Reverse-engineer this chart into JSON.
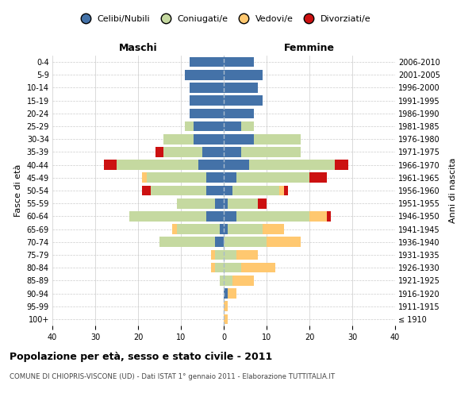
{
  "age_groups": [
    "100+",
    "95-99",
    "90-94",
    "85-89",
    "80-84",
    "75-79",
    "70-74",
    "65-69",
    "60-64",
    "55-59",
    "50-54",
    "45-49",
    "40-44",
    "35-39",
    "30-34",
    "25-29",
    "20-24",
    "15-19",
    "10-14",
    "5-9",
    "0-4"
  ],
  "birth_years": [
    "≤ 1910",
    "1911-1915",
    "1916-1920",
    "1921-1925",
    "1926-1930",
    "1931-1935",
    "1936-1940",
    "1941-1945",
    "1946-1950",
    "1951-1955",
    "1956-1960",
    "1961-1965",
    "1966-1970",
    "1971-1975",
    "1976-1980",
    "1981-1985",
    "1986-1990",
    "1991-1995",
    "1996-2000",
    "2001-2005",
    "2006-2010"
  ],
  "colors": {
    "celibi": "#4472a8",
    "coniugati": "#c5d9a0",
    "vedovi": "#ffc870",
    "divorziati": "#cc1111"
  },
  "maschi": {
    "celibi": [
      0,
      0,
      0,
      0,
      0,
      0,
      2,
      1,
      4,
      2,
      4,
      4,
      6,
      5,
      7,
      7,
      8,
      8,
      8,
      9,
      8
    ],
    "coniugati": [
      0,
      0,
      0,
      1,
      2,
      2,
      13,
      10,
      18,
      9,
      13,
      14,
      19,
      9,
      7,
      2,
      0,
      0,
      0,
      0,
      0
    ],
    "vedovi": [
      0,
      0,
      0,
      0,
      1,
      1,
      0,
      1,
      0,
      0,
      0,
      1,
      0,
      0,
      0,
      0,
      0,
      0,
      0,
      0,
      0
    ],
    "divorziati": [
      0,
      0,
      0,
      0,
      0,
      0,
      0,
      0,
      0,
      0,
      2,
      0,
      3,
      2,
      0,
      0,
      0,
      0,
      0,
      0,
      0
    ]
  },
  "femmine": {
    "celibi": [
      0,
      0,
      1,
      0,
      0,
      0,
      0,
      1,
      3,
      1,
      2,
      3,
      6,
      4,
      7,
      4,
      7,
      9,
      8,
      9,
      7
    ],
    "coniugati": [
      0,
      0,
      0,
      2,
      4,
      3,
      10,
      8,
      17,
      7,
      11,
      17,
      20,
      14,
      11,
      3,
      0,
      0,
      0,
      0,
      0
    ],
    "vedovi": [
      1,
      1,
      2,
      5,
      8,
      5,
      8,
      5,
      4,
      0,
      1,
      0,
      0,
      0,
      0,
      0,
      0,
      0,
      0,
      0,
      0
    ],
    "divorziati": [
      0,
      0,
      0,
      0,
      0,
      0,
      0,
      0,
      1,
      2,
      1,
      4,
      3,
      0,
      0,
      0,
      0,
      0,
      0,
      0,
      0
    ]
  },
  "xlim": 40,
  "title": "Popolazione per età, sesso e stato civile - 2011",
  "subtitle": "COMUNE DI CHIOPRIS-VISCONE (UD) - Dati ISTAT 1° gennaio 2011 - Elaborazione TUTTITALIA.IT",
  "ylabel_left": "Fasce di età",
  "ylabel_right": "Anni di nascita",
  "xlabel_left": "Maschi",
  "xlabel_right": "Femmine"
}
